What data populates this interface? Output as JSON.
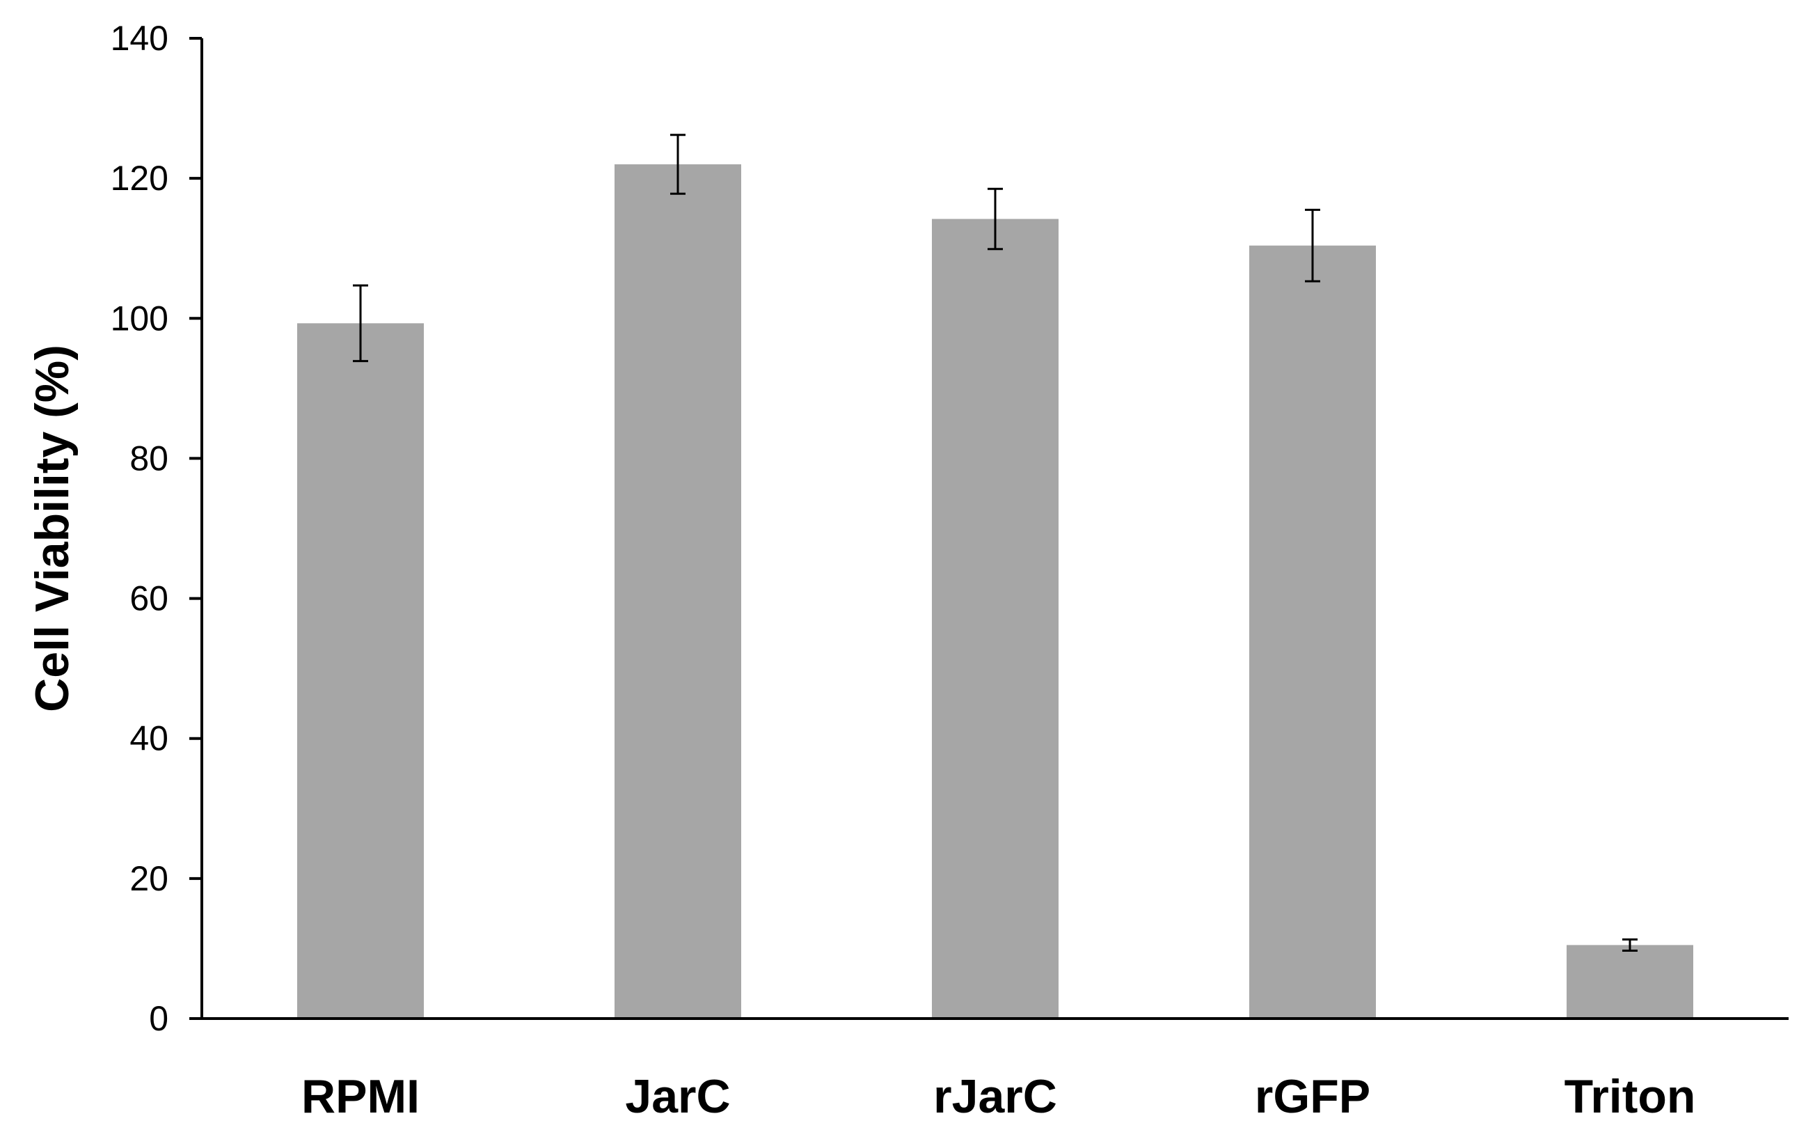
{
  "chart_data": {
    "type": "bar",
    "title": "",
    "xlabel": "",
    "ylabel": "Cell Viability (%)",
    "categories": [
      "RPMI",
      "JarC",
      "rJarC",
      "rGFP",
      "Triton"
    ],
    "series": [
      {
        "values": [
          99.3,
          122.0,
          114.2,
          110.4,
          10.5
        ],
        "error": [
          5.4,
          4.2,
          4.3,
          5.1,
          0.8
        ]
      }
    ],
    "ylim": [
      0,
      140
    ],
    "yticks": [
      0,
      20,
      40,
      60,
      80,
      100,
      120,
      140
    ],
    "grid": false,
    "legend": "none",
    "colors": {
      "bar": "#a6a6a6",
      "axis": "#000000",
      "error_bar": "#000000"
    }
  }
}
